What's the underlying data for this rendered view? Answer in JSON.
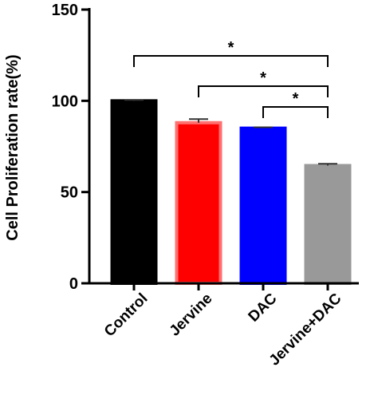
{
  "chart_data": {
    "type": "bar",
    "y_label": "Cell Proliferation  rate(%)",
    "categories": [
      "Control",
      "Jervine",
      "DAC",
      "Jervine+DAC"
    ],
    "values": [
      100,
      88,
      85,
      64.5
    ],
    "errors": [
      0.5,
      2,
      0.5,
      1
    ],
    "colors": [
      "#000000",
      "#ff0000",
      "#0000ff",
      "#999999"
    ],
    "ylim": [
      0,
      150
    ],
    "yticks": [
      0,
      50,
      100,
      150
    ],
    "comparisons": [
      {
        "from": 0,
        "to": 3,
        "label": "*"
      },
      {
        "from": 1,
        "to": 3,
        "label": "*"
      },
      {
        "from": 2,
        "to": 3,
        "label": "*"
      }
    ]
  }
}
